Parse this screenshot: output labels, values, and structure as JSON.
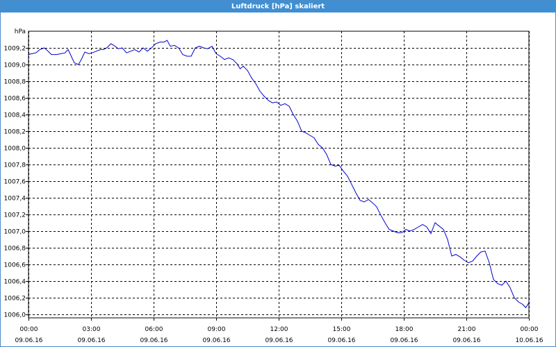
{
  "window": {
    "title": "Luftdruck [hPa] skaliert"
  },
  "colors": {
    "line": "#0000cc",
    "titlebar": "#3f8fd2",
    "grid": "#000000"
  },
  "chart_data": {
    "type": "line",
    "title": "Luftdruck [hPa] skaliert",
    "ylabel": "hPa",
    "xlabel": "",
    "grid": true,
    "xlim_hours": [
      0,
      24
    ],
    "ylim": [
      1006.0,
      1009.4
    ],
    "yticks": [
      "1009,2",
      "1009,0",
      "1008,8",
      "1008,6",
      "1008,4",
      "1008,2",
      "1008,0",
      "1007,8",
      "1007,6",
      "1007,4",
      "1007,2",
      "1007,0",
      "1006,8",
      "1006,6",
      "1006,4",
      "1006,2",
      "1006,0"
    ],
    "xticks": [
      {
        "time": "00:00",
        "date": "09.06.16"
      },
      {
        "time": "03:00",
        "date": "09.06.16"
      },
      {
        "time": "06:00",
        "date": "09.06.16"
      },
      {
        "time": "09:00",
        "date": "09.06.16"
      },
      {
        "time": "12:00",
        "date": "09.06.16"
      },
      {
        "time": "15:00",
        "date": "09.06.16"
      },
      {
        "time": "18:00",
        "date": "09.06.16"
      },
      {
        "time": "21:00",
        "date": "09.06.16"
      },
      {
        "time": "00:00",
        "date": "10.06.16"
      }
    ],
    "series": [
      {
        "x_hours": [
          0.0,
          0.15,
          0.35,
          0.55,
          0.75,
          0.9,
          1.1,
          1.35,
          1.55,
          1.75,
          1.9,
          2.05,
          2.2,
          2.4,
          2.55,
          2.7,
          2.9,
          3.05,
          3.25,
          3.45,
          3.6,
          3.75,
          3.95,
          4.1,
          4.3,
          4.5,
          4.7,
          4.9,
          5.1,
          5.3,
          5.5,
          5.7,
          5.9,
          6.1,
          6.3,
          6.5,
          6.65,
          6.8,
          7.0,
          7.2,
          7.4,
          7.6,
          7.8,
          8.0,
          8.2,
          8.4,
          8.6,
          8.8,
          9.0,
          9.2,
          9.4,
          9.6,
          9.8,
          10.0,
          10.15,
          10.3,
          10.5,
          10.7,
          10.9,
          11.1,
          11.3,
          11.5,
          11.7,
          11.9,
          12.1,
          12.3,
          12.5,
          12.7,
          12.9,
          13.1,
          13.3,
          13.5,
          13.7,
          13.9,
          14.1,
          14.3,
          14.5,
          14.7,
          14.9,
          15.1,
          15.3,
          15.5,
          15.7,
          15.9,
          16.1,
          16.3,
          16.5,
          16.7,
          16.9,
          17.1,
          17.3,
          17.5,
          17.7,
          17.9,
          18.1,
          18.3,
          18.5,
          18.7,
          18.9,
          19.1,
          19.3,
          19.5,
          19.7,
          19.9,
          20.1,
          20.3,
          20.5,
          20.7,
          20.9,
          21.1,
          21.3,
          21.5,
          21.7,
          21.9,
          22.1,
          22.3,
          22.5,
          22.7,
          22.9,
          23.1,
          23.3,
          23.5,
          23.7,
          23.85,
          24.0
        ],
        "y": [
          1009.12,
          1009.13,
          1009.14,
          1009.18,
          1009.2,
          1009.17,
          1009.12,
          1009.12,
          1009.13,
          1009.14,
          1009.18,
          1009.1,
          1009.02,
          1009.0,
          1009.07,
          1009.15,
          1009.13,
          1009.14,
          1009.16,
          1009.18,
          1009.18,
          1009.2,
          1009.25,
          1009.23,
          1009.19,
          1009.2,
          1009.14,
          1009.16,
          1009.18,
          1009.15,
          1009.2,
          1009.16,
          1009.2,
          1009.25,
          1009.27,
          1009.27,
          1009.29,
          1009.22,
          1009.23,
          1009.2,
          1009.12,
          1009.1,
          1009.1,
          1009.2,
          1009.22,
          1009.2,
          1009.19,
          1009.22,
          1009.13,
          1009.1,
          1009.06,
          1009.08,
          1009.06,
          1009.01,
          1008.95,
          1008.98,
          1008.93,
          1008.84,
          1008.77,
          1008.68,
          1008.62,
          1008.57,
          1008.54,
          1008.55,
          1008.51,
          1008.53,
          1008.5,
          1008.4,
          1008.32,
          1008.2,
          1008.18,
          1008.15,
          1008.12,
          1008.04,
          1008.0,
          1007.92,
          1007.8,
          1007.78,
          1007.79,
          1007.72,
          1007.66,
          1007.56,
          1007.46,
          1007.37,
          1007.35,
          1007.38,
          1007.34,
          1007.29,
          1007.19,
          1007.1,
          1007.02,
          1007.0,
          1006.98,
          1006.98,
          1007.02,
          1007.0,
          1007.02,
          1007.05,
          1007.08,
          1007.05,
          1006.97,
          1007.1,
          1007.06,
          1007.02,
          1006.9,
          1006.7,
          1006.72,
          1006.69,
          1006.65,
          1006.62,
          1006.64,
          1006.7,
          1006.75,
          1006.76,
          1006.62,
          1006.42,
          1006.37,
          1006.35,
          1006.4,
          1006.32,
          1006.2,
          1006.15,
          1006.12,
          1006.08,
          1006.14
        ]
      }
    ]
  }
}
